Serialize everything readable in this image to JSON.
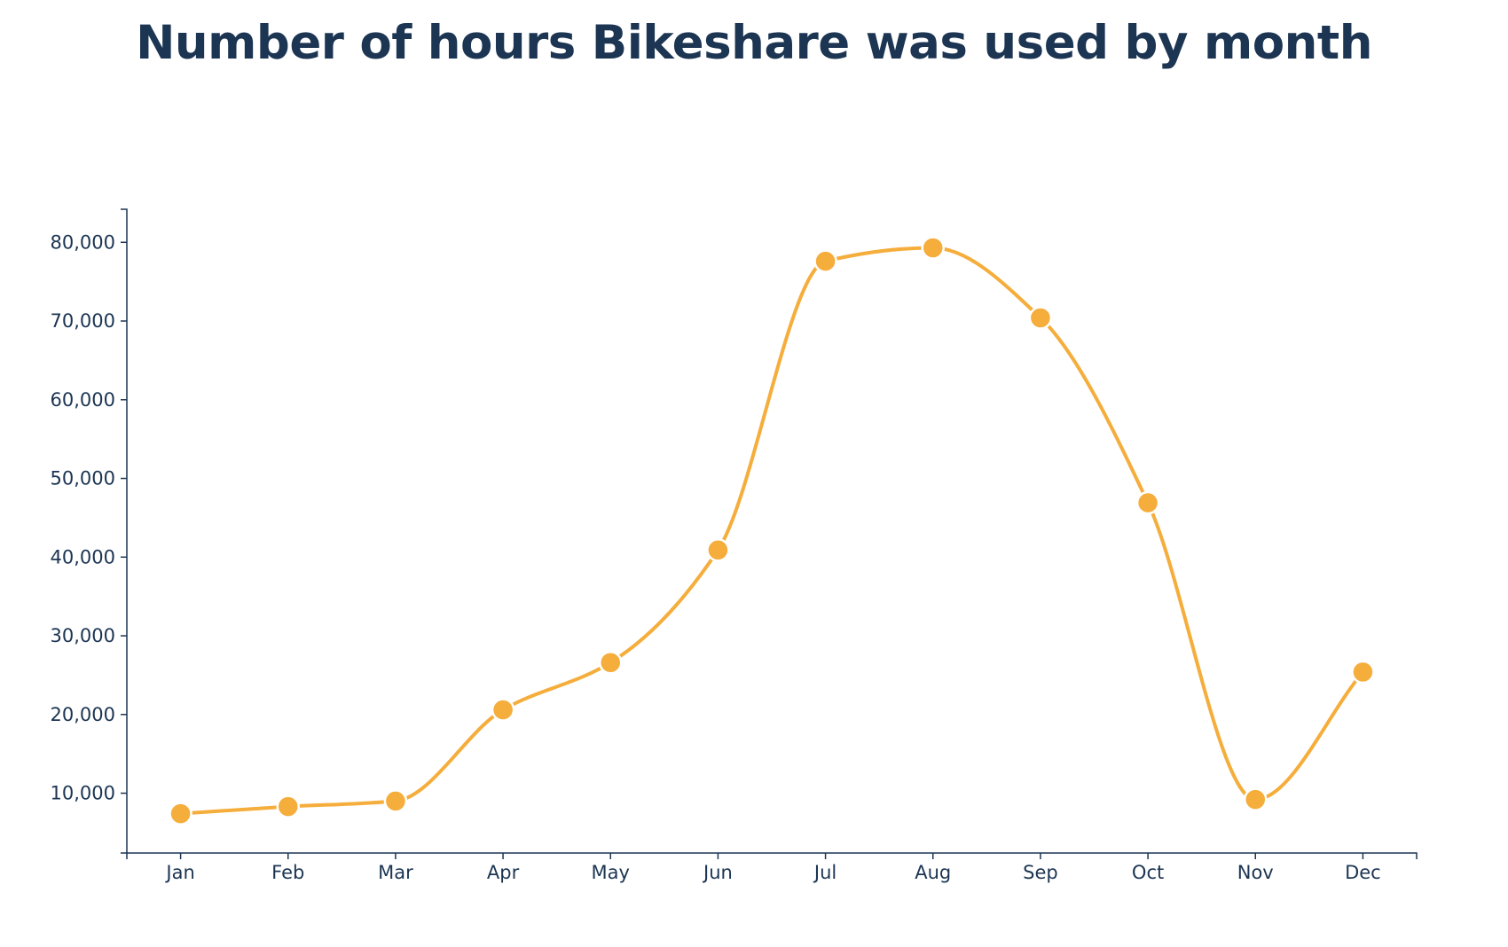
{
  "chart_data": {
    "type": "line",
    "title": "Number of hours Bikeshare was used by month",
    "xlabel": "",
    "ylabel": "",
    "categories": [
      "Jan",
      "Feb",
      "Mar",
      "Apr",
      "May",
      "Jun",
      "Jul",
      "Aug",
      "Sep",
      "Oct",
      "Nov",
      "Dec"
    ],
    "series": [
      {
        "values": [
          7400,
          8300,
          9000,
          20600,
          26600,
          40900,
          77600,
          79300,
          70400,
          46900,
          9200,
          25400
        ]
      }
    ],
    "ylim": [
      2400,
      84200
    ],
    "yticks": [
      10000,
      20000,
      30000,
      40000,
      50000,
      60000,
      70000,
      80000
    ],
    "ytick_labels": [
      "10,000",
      "20,000",
      "30,000",
      "40,000",
      "50,000",
      "60,000",
      "70,000",
      "80,000"
    ],
    "curve": "smooth",
    "grid": false,
    "legend": "none",
    "colors": {
      "line": "#f5ad3b",
      "axis": "#1c3553",
      "title": "#1c3553"
    }
  }
}
